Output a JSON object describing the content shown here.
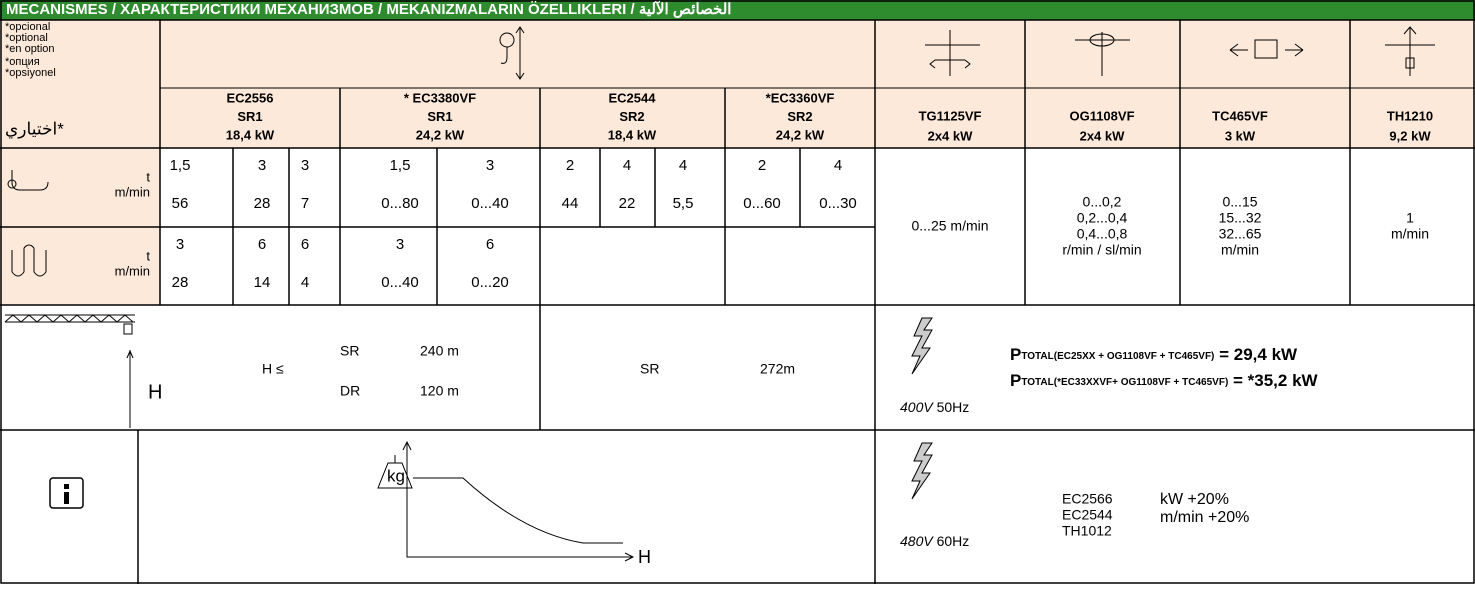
{
  "header": {
    "title": "MECANISMES / ХАРАКТЕРИСТИКИ МЕХАНИЗМОВ / MEKANIZMALARIN ÖZELLIKLERI / الخصائص الآلية"
  },
  "optional": [
    "*opcional",
    "*optional",
    "*en option",
    "*опция",
    "*opsiyonel",
    "اختياري*"
  ],
  "units": {
    "row1": [
      "t",
      "m/min"
    ],
    "row2": [
      "t",
      "m/min"
    ]
  },
  "hoists": [
    {
      "model": "EC2556",
      "reeving": "SR1",
      "power": "18,4 kW",
      "row1": {
        "t": [
          "1,5",
          "3",
          "3"
        ],
        "speed": [
          "56",
          "28",
          "7"
        ]
      },
      "row2": {
        "t": [
          "3",
          "6",
          "6"
        ],
        "speed": [
          "28",
          "14",
          "4"
        ]
      }
    },
    {
      "model": "* EC3380VF",
      "reeving": "SR1",
      "power": "24,2 kW",
      "row1": {
        "t": [
          "1,5",
          "3"
        ],
        "speed": [
          "0...80",
          "0...40"
        ]
      },
      "row2": {
        "t": [
          "3",
          "6"
        ],
        "speed": [
          "0...40",
          "0...20"
        ]
      }
    },
    {
      "model": "EC2544",
      "reeving": "SR2",
      "power": "18,4 kW",
      "row1": {
        "t": [
          "2",
          "4",
          "4"
        ],
        "speed": [
          "44",
          "22",
          "5,5"
        ]
      }
    },
    {
      "model": "*EC3360VF",
      "reeving": "SR2",
      "power": "24,2 kW",
      "row1": {
        "t": [
          "2",
          "4"
        ],
        "speed": [
          "0...60",
          "0...30"
        ]
      }
    }
  ],
  "motors": [
    {
      "model": "TG1125VF",
      "power": "2x4 kW",
      "speed": [
        "0...25 m/min"
      ]
    },
    {
      "model": "OG1108VF",
      "power": "2x4 kW",
      "speed": [
        "0...0,2",
        "0,2...0,4",
        "0,4...0,8",
        "r/min / sl/min"
      ]
    },
    {
      "model": "TC465VF",
      "power": "3 kW",
      "speed": [
        "0...15",
        "15...32",
        "32...65",
        "m/min"
      ]
    },
    {
      "model": "TH1210",
      "power": "9,2 kW",
      "speed": [
        "1",
        "m/min"
      ]
    }
  ],
  "height": {
    "axis": "H",
    "condition": "H ≤",
    "sr1": "SR",
    "sr1_value": "240 m",
    "dr": "DR",
    "dr_value": "120 m",
    "sr2": "SR",
    "sr2_value": "272m"
  },
  "power_400": {
    "voltage": "400V",
    "frequency": "50Hz",
    "lines": [
      [
        "P",
        "TOTAL(EC25XX + OG1108VF + TC465VF)",
        " = 29,4 kW"
      ],
      [
        "P",
        "TOTAL(*EC33XXVF+ OG1108VF + TC465VF)",
        " = *35,2 kW"
      ]
    ]
  },
  "info": {
    "weight": "kg",
    "axis": "H",
    "voltage": "480V",
    "frequency": "60Hz",
    "models": [
      "EC2566",
      "EC2544",
      "TH1012"
    ],
    "increase": [
      "kW +20%",
      "m/min +20%"
    ]
  }
}
